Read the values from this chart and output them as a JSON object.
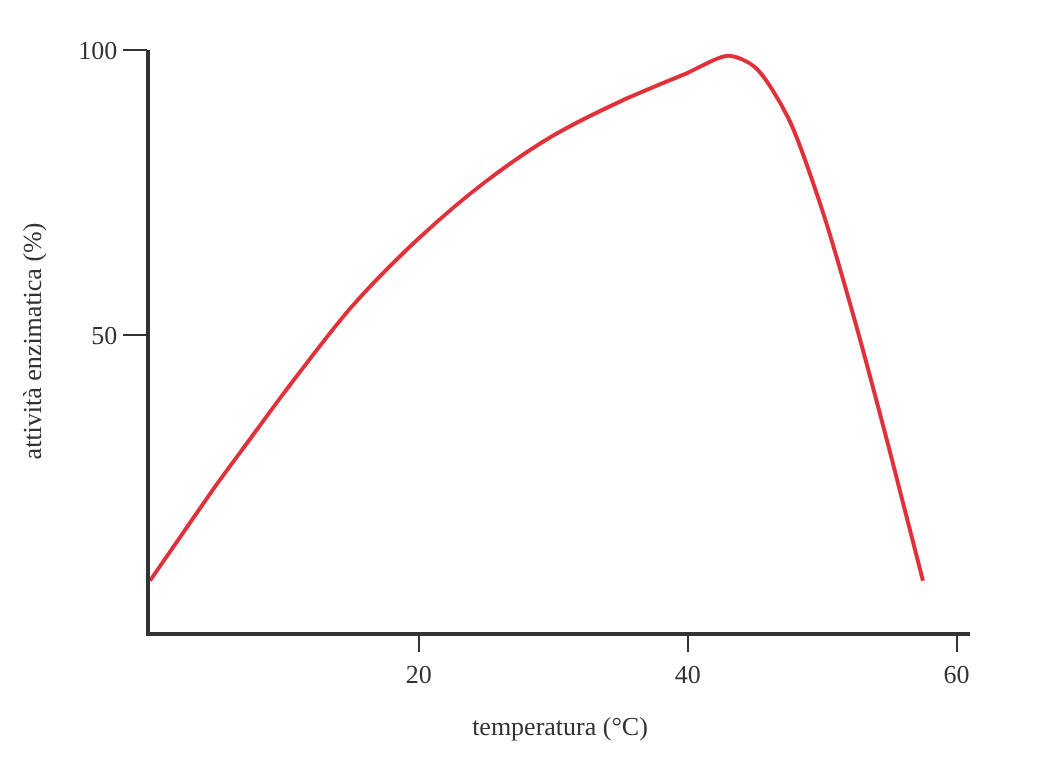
{
  "chart_data": {
    "type": "line",
    "xlabel": "temperatura (°C)",
    "ylabel": "attività enzimatica (%)",
    "x": [
      0,
      2.5,
      5,
      7.5,
      10,
      15,
      20,
      25,
      30,
      35,
      40,
      43,
      45,
      47.5,
      50,
      52.5,
      55,
      57.5
    ],
    "series": [
      {
        "color": "#e0303a",
        "values": [
          7,
          15.5,
          24,
          32,
          40,
          55,
          67,
          77,
          85,
          91,
          96,
          99,
          97,
          88,
          72,
          52,
          30,
          7
        ]
      }
    ],
    "xlim": [
      0,
      61
    ],
    "ylim": [
      -2,
      100
    ],
    "xticks": [
      20,
      40,
      60
    ],
    "yticks": [
      50,
      100
    ],
    "legend": false,
    "marker": "none",
    "line_style": "solid"
  }
}
